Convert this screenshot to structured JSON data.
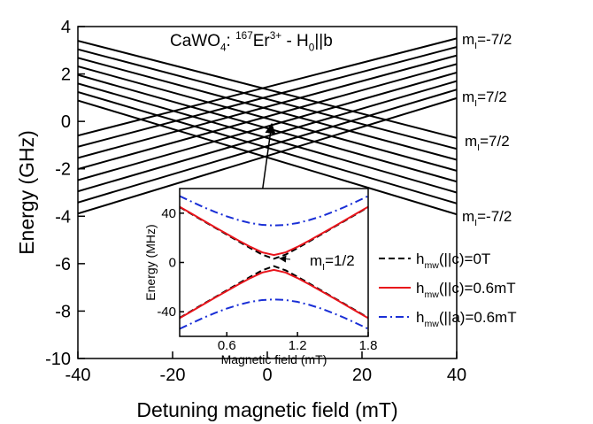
{
  "chart_data": [
    {
      "type": "line",
      "title_parts": [
        "CaWO",
        "4",
        ": ",
        "167",
        "Er",
        "3+",
        " - H",
        "0",
        "||b"
      ],
      "x_label": "Detuning magnetic field (mT)",
      "y_label": "Energy (GHz)",
      "xlim": [
        -40,
        40
      ],
      "ylim": [
        -10,
        4
      ],
      "xticks": [
        -40,
        -20,
        0,
        20,
        40
      ],
      "yticks": [
        -10,
        -8,
        -6,
        -4,
        -2,
        0,
        2,
        4
      ],
      "x": [
        -40,
        40
      ],
      "series": [
        {
          "color": "#000000",
          "values": [
            3.4,
            -0.7
          ]
        },
        {
          "color": "#000000",
          "values": [
            3.04,
            -1.16
          ]
        },
        {
          "color": "#000000",
          "values": [
            2.68,
            -1.62
          ]
        },
        {
          "color": "#000000",
          "values": [
            2.32,
            -2.08
          ]
        },
        {
          "color": "#000000",
          "values": [
            1.96,
            -2.54
          ]
        },
        {
          "color": "#000000",
          "values": [
            1.6,
            -3.0
          ]
        },
        {
          "color": "#000000",
          "values": [
            1.24,
            -3.46
          ]
        },
        {
          "color": "#000000",
          "values": [
            0.88,
            -3.92
          ]
        },
        {
          "color": "#000000",
          "values": [
            -0.6,
            3.5
          ]
        },
        {
          "color": "#000000",
          "values": [
            -1.07,
            3.14
          ]
        },
        {
          "color": "#000000",
          "values": [
            -1.54,
            2.78
          ]
        },
        {
          "color": "#000000",
          "values": [
            -2.01,
            2.42
          ]
        },
        {
          "color": "#000000",
          "values": [
            -2.48,
            2.06
          ]
        },
        {
          "color": "#000000",
          "values": [
            -2.95,
            1.7
          ]
        },
        {
          "color": "#000000",
          "values": [
            -3.42,
            1.34
          ]
        },
        {
          "color": "#000000",
          "values": [
            -3.89,
            0.98
          ]
        }
      ],
      "annotations": [
        [
          "m",
          "I",
          "=-7/2"
        ],
        [
          "m",
          "I",
          "=7/2"
        ],
        [
          "m",
          "I",
          "=7/2"
        ],
        [
          "m",
          "I",
          "=-7/2"
        ]
      ]
    },
    {
      "type": "line",
      "x_label": "Magnetic field (mT)",
      "y_label": "Energy (MHz)",
      "xlim": [
        0.2,
        1.8
      ],
      "ylim": [
        -60,
        60
      ],
      "xticks": [
        0.6,
        1.2,
        1.8
      ],
      "yticks": [
        -40,
        0,
        40
      ],
      "x": [
        0.2,
        0.3,
        0.4,
        0.5,
        0.6,
        0.7,
        0.8,
        0.9,
        1.0,
        1.1,
        1.2,
        1.3,
        1.4,
        1.5,
        1.6,
        1.7,
        1.8
      ],
      "series": [
        {
          "name": [
            "h",
            "mw",
            "(||c)=0T"
          ],
          "color": "#000000",
          "linestyle": "dashed",
          "values": [
            44.9,
            39.3,
            33.7,
            28.2,
            22.6,
            17.1,
            11.6,
            6.4,
            3,
            6.4,
            11.6,
            17.1,
            22.6,
            28.2,
            33.7,
            39.3,
            44.9
          ],
          "values_lower": [
            -44.9,
            -39.3,
            -33.7,
            -28.2,
            -22.6,
            -17.1,
            -11.6,
            -6.4,
            -3,
            -6.4,
            -11.6,
            -17.1,
            -22.6,
            -28.2,
            -33.7,
            -39.3,
            -44.9
          ]
        },
        {
          "name": [
            "h",
            "mw",
            "(||c)=0.6mT"
          ],
          "color": "#e8141b",
          "linestyle": "solid",
          "values": [
            45.2,
            39.7,
            34.1,
            28.6,
            23.2,
            17.8,
            12.7,
            8.2,
            6,
            8.2,
            12.7,
            17.8,
            23.2,
            28.6,
            34.1,
            39.7,
            45.2
          ],
          "values_lower": [
            -45.2,
            -39.7,
            -34.1,
            -28.6,
            -23.2,
            -17.8,
            -12.7,
            -8.2,
            -6,
            -8.2,
            -12.7,
            -17.8,
            -23.2,
            -28.6,
            -34.1,
            -39.7,
            -45.2
          ]
        },
        {
          "name": [
            "h",
            "mw",
            "(||a)=0.6mT"
          ],
          "color": "#1a2fd6",
          "linestyle": "dashdot",
          "values": [
            53.9,
            49.4,
            45.0,
            41.0,
            37.4,
            34.4,
            32.0,
            30.5,
            30,
            30.5,
            32.0,
            34.4,
            37.4,
            41.0,
            45.0,
            49.4,
            53.9
          ],
          "values_lower": [
            -53.9,
            -49.4,
            -45.0,
            -41.0,
            -37.4,
            -34.4,
            -32.0,
            -30.5,
            -30,
            -30.5,
            -32.0,
            -34.4,
            -37.4,
            -41.0,
            -45.0,
            -49.4,
            -53.9
          ]
        }
      ],
      "annotation": [
        "m",
        "I",
        "=1/2"
      ]
    }
  ]
}
